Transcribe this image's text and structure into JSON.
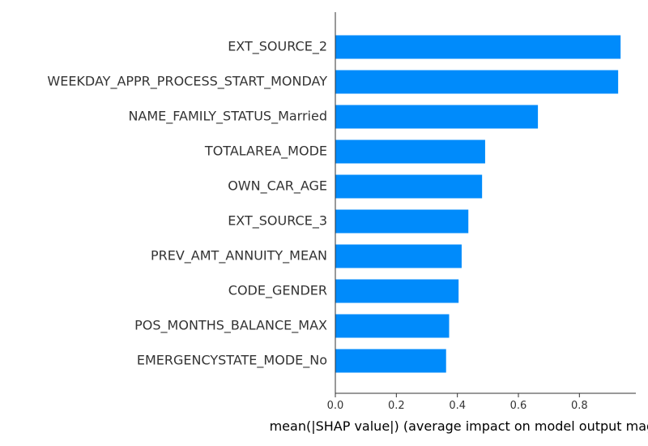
{
  "chart_data": {
    "type": "bar",
    "orientation": "horizontal",
    "categories": [
      "EXT_SOURCE_2",
      "WEEKDAY_APPR_PROCESS_START_MONDAY",
      "NAME_FAMILY_STATUS_Married",
      "TOTALAREA_MODE",
      "OWN_CAR_AGE",
      "EXT_SOURCE_3",
      "PREV_AMT_ANNUITY_MEAN",
      "CODE_GENDER",
      "POS_MONTHS_BALANCE_MAX",
      "EMERGENCYSTATE_MODE_No"
    ],
    "values": [
      0.935,
      0.927,
      0.664,
      0.491,
      0.481,
      0.436,
      0.414,
      0.404,
      0.373,
      0.363
    ],
    "xlabel": "mean(|SHAP value|) (average impact on model output magnitude)",
    "xlim": [
      0,
      0.985
    ],
    "xticks": [
      "0.0",
      "0.2",
      "0.4",
      "0.6",
      "0.8"
    ],
    "grid": false,
    "bar_color": "#008bfb",
    "axis_color": "#333333"
  }
}
